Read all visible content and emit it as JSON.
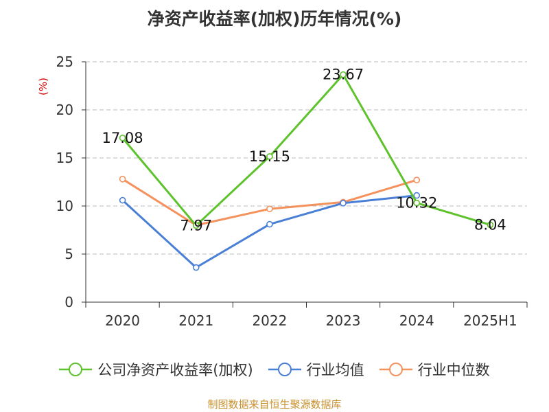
{
  "title": "净资产收益率(加权)历年情况(%)",
  "source": "制图数据来自恒生聚源数据库",
  "colors": {
    "axis": "#333333",
    "grid": "#bbbbbb",
    "unit": "#d40000",
    "label": "#111111",
    "company": "#5dc22b",
    "industry_avg": "#4a7fd6",
    "industry_median": "#f4915d"
  },
  "chart_data": {
    "type": "line",
    "title": "净资产收益率(加权)历年情况(%)",
    "ylabel": "(%)",
    "xlabel": "",
    "categories": [
      "2020",
      "2021",
      "2022",
      "2023",
      "2024",
      "2025H1"
    ],
    "ylim": [
      0,
      25
    ],
    "yticks": [
      0,
      5,
      10,
      15,
      20,
      25
    ],
    "grid": true,
    "legend_position": "bottom",
    "series": [
      {
        "name": "公司净资产收益率(加权)",
        "color": "#5dc22b",
        "values": [
          17.08,
          7.97,
          15.15,
          23.67,
          10.32,
          8.04
        ],
        "labels": [
          "17.08",
          "7.97",
          "15.15",
          "23.67",
          "10.32",
          "8.04"
        ]
      },
      {
        "name": "行业均值",
        "color": "#4a7fd6",
        "values": [
          10.6,
          3.6,
          8.1,
          10.3,
          11.1,
          null
        ]
      },
      {
        "name": "行业中位数",
        "color": "#f4915d",
        "values": [
          12.8,
          8.0,
          9.7,
          10.4,
          12.7,
          null
        ]
      }
    ]
  }
}
